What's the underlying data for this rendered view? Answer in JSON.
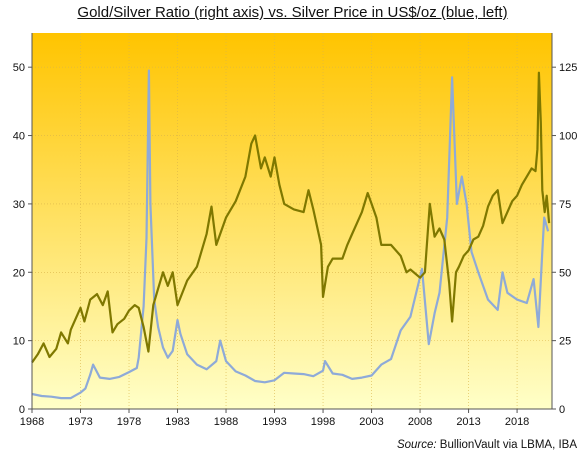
{
  "title": "Gold/Silver Ratio (right axis) vs. Silver Price in US$/oz (blue, left)",
  "source_label": "Source:",
  "source_text": "BullionVault via LBMA, IBA",
  "chart_data": {
    "type": "line",
    "title": "Gold/Silver Ratio (right axis) vs. Silver Price in US$/oz (blue, left)",
    "xlabel": "",
    "ylabel": "",
    "xlim": [
      1968,
      2021.6
    ],
    "ylim_left": [
      0,
      55
    ],
    "ylim_right": [
      0,
      137.5
    ],
    "x_ticks": [
      "1968",
      "1973",
      "1978",
      "1983",
      "1988",
      "1993",
      "1998",
      "2003",
      "2008",
      "2013",
      "2018"
    ],
    "y_ticks_left": [
      "0",
      "10",
      "20",
      "30",
      "40",
      "50"
    ],
    "y_ticks_right": [
      "0",
      "25",
      "50",
      "75",
      "100",
      "125"
    ],
    "grid": true,
    "background_gradient": [
      "#ffc400",
      "#ffffc8"
    ],
    "series": [
      {
        "axis": "left",
        "color": "#8eaad8",
        "points": [
          [
            1968.0,
            2.2
          ],
          [
            1969.0,
            1.9
          ],
          [
            1970.0,
            1.8
          ],
          [
            1971.0,
            1.6
          ],
          [
            1972.0,
            1.6
          ],
          [
            1973.0,
            2.4
          ],
          [
            1973.5,
            3.0
          ],
          [
            1974.0,
            5.0
          ],
          [
            1974.3,
            6.5
          ],
          [
            1975.0,
            4.6
          ],
          [
            1976.0,
            4.4
          ],
          [
            1977.0,
            4.7
          ],
          [
            1978.0,
            5.4
          ],
          [
            1978.8,
            6.0
          ],
          [
            1979.0,
            7.5
          ],
          [
            1979.5,
            15.0
          ],
          [
            1979.8,
            25.0
          ],
          [
            1980.05,
            49.5
          ],
          [
            1980.2,
            30.0
          ],
          [
            1980.6,
            16.0
          ],
          [
            1981.0,
            12.0
          ],
          [
            1981.5,
            9.0
          ],
          [
            1982.0,
            7.5
          ],
          [
            1982.5,
            8.5
          ],
          [
            1983.0,
            13.0
          ],
          [
            1983.3,
            11.0
          ],
          [
            1984.0,
            8.0
          ],
          [
            1985.0,
            6.5
          ],
          [
            1986.0,
            5.8
          ],
          [
            1987.0,
            7.0
          ],
          [
            1987.4,
            10.0
          ],
          [
            1988.0,
            7.0
          ],
          [
            1989.0,
            5.5
          ],
          [
            1990.0,
            4.9
          ],
          [
            1991.0,
            4.1
          ],
          [
            1992.0,
            3.9
          ],
          [
            1993.0,
            4.2
          ],
          [
            1994.0,
            5.3
          ],
          [
            1995.0,
            5.2
          ],
          [
            1996.0,
            5.1
          ],
          [
            1997.0,
            4.8
          ],
          [
            1998.0,
            5.6
          ],
          [
            1998.2,
            7.0
          ],
          [
            1999.0,
            5.2
          ],
          [
            2000.0,
            5.0
          ],
          [
            2001.0,
            4.4
          ],
          [
            2002.0,
            4.6
          ],
          [
            2003.0,
            4.9
          ],
          [
            2004.0,
            6.5
          ],
          [
            2005.0,
            7.3
          ],
          [
            2006.0,
            11.5
          ],
          [
            2007.0,
            13.5
          ],
          [
            2008.2,
            20.5
          ],
          [
            2008.9,
            9.5
          ],
          [
            2009.5,
            14.0
          ],
          [
            2010.0,
            17.0
          ],
          [
            2010.8,
            28.0
          ],
          [
            2011.3,
            48.5
          ],
          [
            2011.8,
            30.0
          ],
          [
            2012.3,
            34.0
          ],
          [
            2012.8,
            30.0
          ],
          [
            2013.3,
            23.0
          ],
          [
            2014.0,
            20.0
          ],
          [
            2015.0,
            16.0
          ],
          [
            2016.0,
            14.5
          ],
          [
            2016.5,
            20.0
          ],
          [
            2017.0,
            17.0
          ],
          [
            2018.0,
            16.0
          ],
          [
            2019.0,
            15.5
          ],
          [
            2019.7,
            19.0
          ],
          [
            2020.2,
            12.0
          ],
          [
            2020.6,
            23.0
          ],
          [
            2020.8,
            28.0
          ],
          [
            2021.2,
            26.0
          ]
        ]
      },
      {
        "axis": "right",
        "color": "#7f7800",
        "points": [
          [
            1968.0,
            17.0
          ],
          [
            1968.6,
            20.0
          ],
          [
            1969.2,
            24.0
          ],
          [
            1969.8,
            19.0
          ],
          [
            1970.5,
            22.0
          ],
          [
            1971.0,
            28.0
          ],
          [
            1971.7,
            24.0
          ],
          [
            1972.0,
            29.0
          ],
          [
            1973.0,
            37.0
          ],
          [
            1973.4,
            32.0
          ],
          [
            1974.0,
            40.0
          ],
          [
            1974.7,
            42.0
          ],
          [
            1975.3,
            38.0
          ],
          [
            1975.8,
            43.0
          ],
          [
            1976.3,
            28.0
          ],
          [
            1976.8,
            31.0
          ],
          [
            1977.5,
            33.0
          ],
          [
            1978.0,
            36.0
          ],
          [
            1978.6,
            38.0
          ],
          [
            1979.0,
            37.0
          ],
          [
            1979.5,
            30.0
          ],
          [
            1980.0,
            21.0
          ],
          [
            1980.5,
            38.0
          ],
          [
            1981.0,
            44.0
          ],
          [
            1981.5,
            50.0
          ],
          [
            1982.0,
            45.0
          ],
          [
            1982.5,
            50.0
          ],
          [
            1983.0,
            38.0
          ],
          [
            1984.0,
            47.0
          ],
          [
            1985.0,
            52.0
          ],
          [
            1986.0,
            64.0
          ],
          [
            1986.5,
            74.0
          ],
          [
            1987.0,
            60.0
          ],
          [
            1988.0,
            70.0
          ],
          [
            1989.0,
            76.0
          ],
          [
            1990.0,
            85.0
          ],
          [
            1990.6,
            97.0
          ],
          [
            1991.0,
            100.0
          ],
          [
            1991.6,
            88.0
          ],
          [
            1992.0,
            92.0
          ],
          [
            1992.6,
            85.0
          ],
          [
            1993.0,
            92.0
          ],
          [
            1993.5,
            82.0
          ],
          [
            1994.0,
            75.0
          ],
          [
            1995.0,
            73.0
          ],
          [
            1996.0,
            72.0
          ],
          [
            1996.5,
            80.0
          ],
          [
            1997.0,
            73.0
          ],
          [
            1997.8,
            60.0
          ],
          [
            1998.0,
            41.0
          ],
          [
            1998.5,
            52.0
          ],
          [
            1999.0,
            55.0
          ],
          [
            2000.0,
            55.0
          ],
          [
            2000.5,
            60.0
          ],
          [
            2001.0,
            64.0
          ],
          [
            2001.5,
            68.0
          ],
          [
            2002.0,
            72.0
          ],
          [
            2002.6,
            79.0
          ],
          [
            2003.0,
            75.0
          ],
          [
            2003.5,
            70.0
          ],
          [
            2004.0,
            60.0
          ],
          [
            2005.0,
            60.0
          ],
          [
            2006.0,
            56.0
          ],
          [
            2006.6,
            50.0
          ],
          [
            2007.0,
            51.0
          ],
          [
            2008.0,
            48.0
          ],
          [
            2008.5,
            50.0
          ],
          [
            2009.0,
            75.0
          ],
          [
            2009.5,
            63.0
          ],
          [
            2010.0,
            66.0
          ],
          [
            2010.5,
            62.0
          ],
          [
            2011.0,
            46.0
          ],
          [
            2011.3,
            32.0
          ],
          [
            2011.7,
            50.0
          ],
          [
            2012.0,
            52.0
          ],
          [
            2012.5,
            56.0
          ],
          [
            2013.0,
            58.0
          ],
          [
            2013.5,
            62.0
          ],
          [
            2014.0,
            63.0
          ],
          [
            2014.5,
            67.0
          ],
          [
            2015.0,
            74.0
          ],
          [
            2015.5,
            78.0
          ],
          [
            2016.0,
            80.0
          ],
          [
            2016.5,
            68.0
          ],
          [
            2017.0,
            72.0
          ],
          [
            2017.5,
            76.0
          ],
          [
            2018.0,
            78.0
          ],
          [
            2018.5,
            82.0
          ],
          [
            2019.0,
            85.0
          ],
          [
            2019.5,
            88.0
          ],
          [
            2019.9,
            87.0
          ],
          [
            2020.1,
            95.0
          ],
          [
            2020.25,
            123.0
          ],
          [
            2020.45,
            105.0
          ],
          [
            2020.6,
            80.0
          ],
          [
            2020.85,
            72.0
          ],
          [
            2021.05,
            78.0
          ],
          [
            2021.3,
            68.0
          ]
        ]
      }
    ]
  }
}
